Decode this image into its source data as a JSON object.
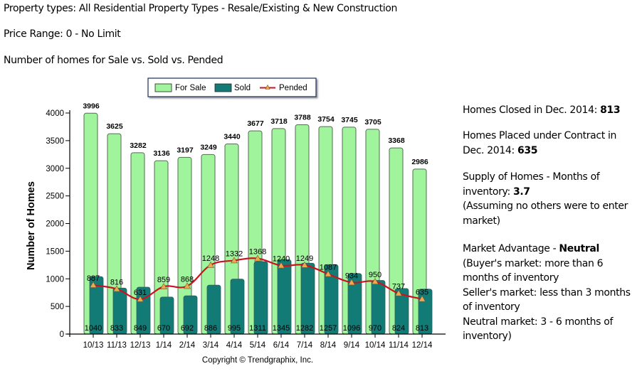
{
  "header": {
    "property_types": "Property types: All Residential Property Types - Resale/Existing & New Construction",
    "price_range": "Price Range: 0 - No Limit",
    "chart_heading": "Number of homes for Sale vs. Sold vs. Pended"
  },
  "sidebar": {
    "closed_label": "Homes Closed in Dec. 2014: ",
    "closed_value": "813",
    "contract_label": "Homes Placed under Contract in Dec. 2014: ",
    "contract_value": "635",
    "supply_label": "Supply of Homes - Months of inventory: ",
    "supply_value": "3.7",
    "supply_note": "(Assuming no others were to enter market)",
    "advantage_label": "Market Advantage - ",
    "advantage_value": "Neutral",
    "advantage_note_1": "(Buyer's market: more than 6 months of inventory",
    "advantage_note_2": "Seller's market: less than 3 months of inventory",
    "advantage_note_3": "Neutral market: 3 - 6 months of inventory)"
  },
  "chart_data": {
    "type": "bar",
    "title": "Number of homes for Sale vs. Sold vs. Pended",
    "xlabel": "",
    "ylabel": "Number of Homes",
    "ylim": [
      0,
      4000
    ],
    "yticks": [
      0,
      500,
      1000,
      1500,
      2000,
      2500,
      3000,
      3500,
      4000
    ],
    "grid": false,
    "legend_position": "top-center",
    "categories": [
      "10/13",
      "11/13",
      "12/13",
      "1/14",
      "2/14",
      "3/14",
      "4/14",
      "5/14",
      "6/14",
      "7/14",
      "8/14",
      "9/14",
      "10/14",
      "11/14",
      "12/14"
    ],
    "series": [
      {
        "name": "For Sale",
        "type": "bar",
        "color": "#a0f59c",
        "values": [
          3996,
          3625,
          3282,
          3136,
          3197,
          3249,
          3440,
          3677,
          3718,
          3788,
          3754,
          3745,
          3705,
          3368,
          2986
        ]
      },
      {
        "name": "Sold",
        "type": "bar",
        "color": "#137b76",
        "values": [
          1040,
          833,
          849,
          670,
          692,
          886,
          995,
          1311,
          1345,
          1282,
          1257,
          1096,
          970,
          824,
          813
        ]
      },
      {
        "name": "Pended",
        "type": "line",
        "color": "#c8141e",
        "marker_color": "#f2a84a",
        "values": [
          887,
          816,
          631,
          859,
          868,
          1248,
          1332,
          1368,
          1240,
          1249,
          1087,
          934,
          950,
          737,
          635
        ]
      }
    ],
    "footer": "Copyright © Trendgraphix, Inc."
  }
}
